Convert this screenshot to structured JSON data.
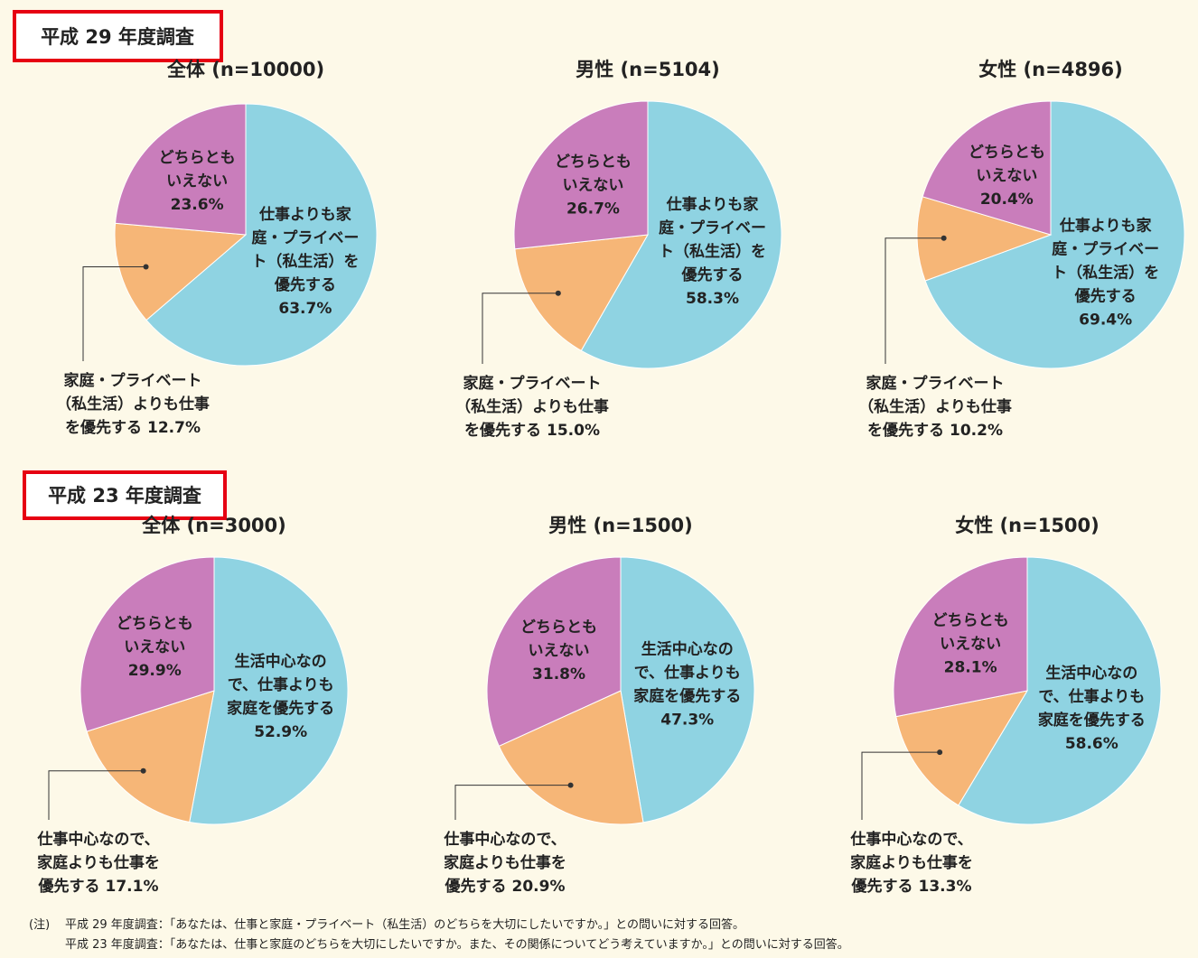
{
  "sections": [
    "平成 29 年度調査",
    "平成 23 年度調査"
  ],
  "chart_data": [
    {
      "type": "pie",
      "title": "全体 (n=10000)",
      "categories": [
        [
          "仕事よりも家",
          "庭・プライベー",
          "ト（私生活）を",
          "優先する"
        ],
        [
          "家庭・プライベート",
          "（私生活）よりも仕事",
          "を優先する"
        ],
        [
          "どちらとも",
          "いえない"
        ]
      ],
      "values": [
        63.7,
        12.7,
        23.6
      ],
      "value_labels": [
        "63.7%",
        "12.7%",
        "23.6%"
      ],
      "colors": [
        "#8fd3e2",
        "#f6b677",
        "#c97dbb"
      ]
    },
    {
      "type": "pie",
      "title": "男性 (n=5104)",
      "categories": [
        [
          "仕事よりも家",
          "庭・プライベー",
          "ト（私生活）を",
          "優先する"
        ],
        [
          "家庭・プライベート",
          "（私生活）よりも仕事",
          "を優先する"
        ],
        [
          "どちらとも",
          "いえない"
        ]
      ],
      "values": [
        58.3,
        15.0,
        26.7
      ],
      "value_labels": [
        "58.3%",
        "15.0%",
        "26.7%"
      ],
      "colors": [
        "#8fd3e2",
        "#f6b677",
        "#c97dbb"
      ]
    },
    {
      "type": "pie",
      "title": "女性 (n=4896)",
      "categories": [
        [
          "仕事よりも家",
          "庭・プライベー",
          "ト（私生活）を",
          "優先する"
        ],
        [
          "家庭・プライベート",
          "（私生活）よりも仕事",
          "を優先する"
        ],
        [
          "どちらとも",
          "いえない"
        ]
      ],
      "values": [
        69.4,
        10.2,
        20.4
      ],
      "value_labels": [
        "69.4%",
        "10.2%",
        "20.4%"
      ],
      "colors": [
        "#8fd3e2",
        "#f6b677",
        "#c97dbb"
      ]
    },
    {
      "type": "pie",
      "title": "全体 (n=3000)",
      "categories": [
        [
          "生活中心なの",
          "で、仕事よりも",
          "家庭を優先する"
        ],
        [
          "仕事中心なので、",
          "家庭よりも仕事を",
          "優先する"
        ],
        [
          "どちらとも",
          "いえない"
        ]
      ],
      "values": [
        52.9,
        17.1,
        29.9
      ],
      "value_labels": [
        "52.9%",
        "17.1%",
        "29.9%"
      ],
      "colors": [
        "#8fd3e2",
        "#f6b677",
        "#c97dbb"
      ]
    },
    {
      "type": "pie",
      "title": "男性 (n=1500)",
      "categories": [
        [
          "生活中心なの",
          "で、仕事よりも",
          "家庭を優先する"
        ],
        [
          "仕事中心なので、",
          "家庭よりも仕事を",
          "優先する"
        ],
        [
          "どちらとも",
          "いえない"
        ]
      ],
      "values": [
        47.3,
        20.9,
        31.8
      ],
      "value_labels": [
        "47.3%",
        "20.9%",
        "31.8%"
      ],
      "colors": [
        "#8fd3e2",
        "#f6b677",
        "#c97dbb"
      ]
    },
    {
      "type": "pie",
      "title": "女性 (n=1500)",
      "categories": [
        [
          "生活中心なの",
          "で、仕事よりも",
          "家庭を優先する"
        ],
        [
          "仕事中心なので、",
          "家庭よりも仕事を",
          "優先する"
        ],
        [
          "どちらとも",
          "いえない"
        ]
      ],
      "values": [
        58.6,
        13.3,
        28.1
      ],
      "value_labels": [
        "58.6%",
        "13.3%",
        "28.1%"
      ],
      "colors": [
        "#8fd3e2",
        "#f6b677",
        "#c97dbb"
      ]
    }
  ],
  "notes": {
    "label": "(注)",
    "lines": [
      "平成 29 年度調査：「あなたは、仕事と家庭・プライベート（私生活）のどちらを大切にしたいですか。」との問いに対する回答。",
      "平成 23 年度調査：「あなたは、仕事と家庭のどちらを大切にしたいですか。また、その関係についてどう考えていますか。」との問いに対する回答。"
    ]
  }
}
